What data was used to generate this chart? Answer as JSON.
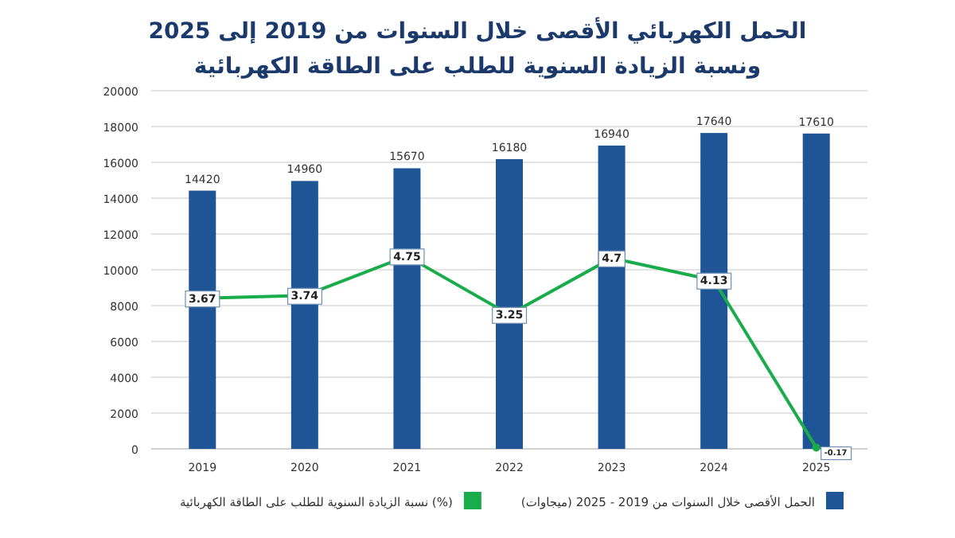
{
  "chart_data": {
    "type": "bar",
    "title": "الحمل الكهربائي الأقصى خلال السنوات من  2019 إلى 2025",
    "subtitle": "ونسبة الزيادة السنوية للطلب على الطاقة الكهربائية",
    "categories": [
      "2019",
      "2020",
      "2021",
      "2022",
      "2023",
      "2024",
      "2025"
    ],
    "series": [
      {
        "name": "الحمل الأقصى  خلال السنوات من 2019 - 2025 (ميجاوات)",
        "color": "#1f5597",
        "values": [
          14420,
          14960,
          15670,
          16180,
          16940,
          17640,
          17610
        ]
      },
      {
        "name": "نسبة الزيادة السنوية للطلب على الطاقة الكهربائية (%)",
        "type": "line",
        "axis": "y2",
        "color": "#1aab4a",
        "values": [
          3.67,
          3.74,
          4.75,
          3.25,
          4.7,
          4.13,
          -0.17
        ]
      }
    ],
    "ylim": [
      0,
      20000
    ],
    "yticks": [
      0,
      2000,
      4000,
      6000,
      8000,
      10000,
      12000,
      14000,
      16000,
      18000,
      20000
    ],
    "y2lim": [
      -0.2,
      9
    ],
    "grid": "y",
    "legend": "bottom",
    "data_labels": true,
    "marker": "circle",
    "line_style": "solid"
  }
}
